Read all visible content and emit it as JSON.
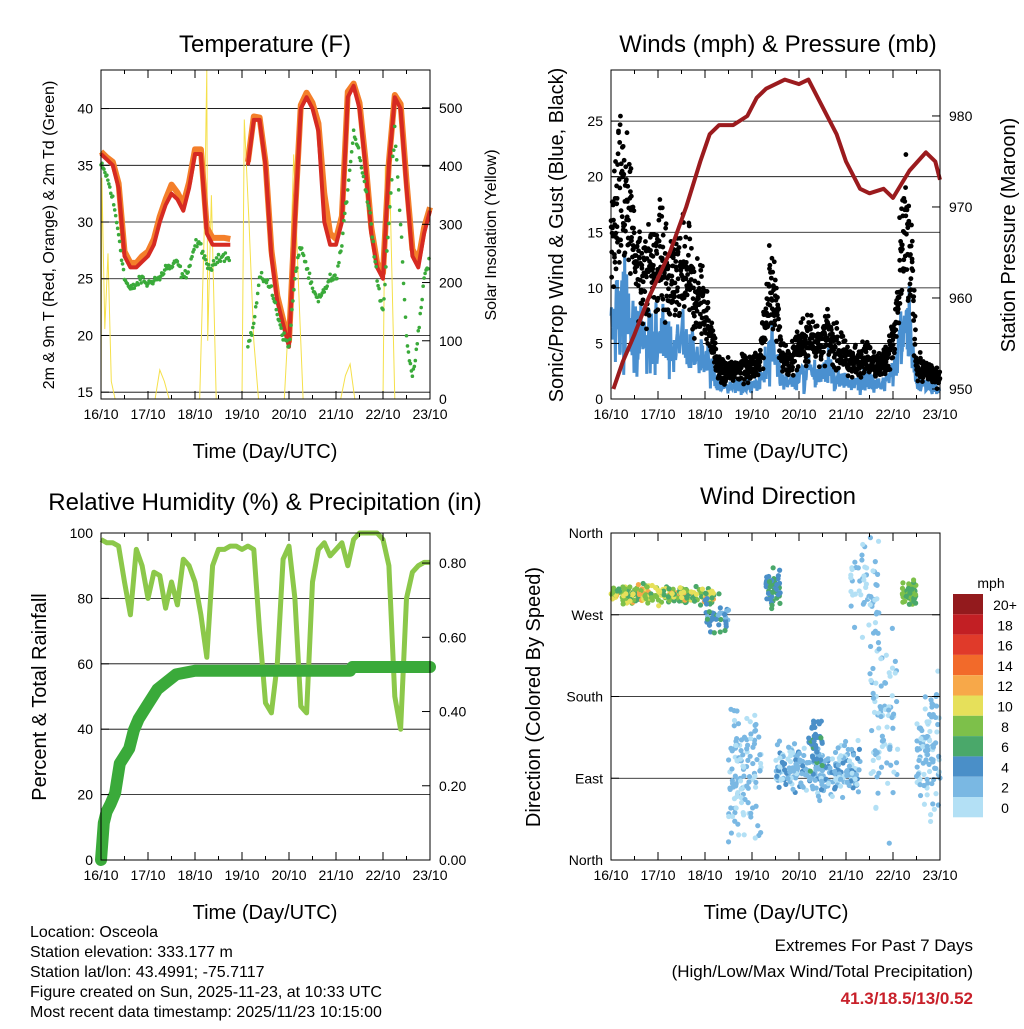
{
  "colors": {
    "temp_2m": "#d62a22",
    "temp_9m": "#f47f2a",
    "dewpoint": "#3aaa3a",
    "solar": "#f5e04a",
    "gust": "#000000",
    "wind": "#4a90d0",
    "pressure": "#9b1b1e",
    "rh": "#8cc84a",
    "precip": "#3aaa3a",
    "extremes": "#c8202a"
  },
  "chart_data": [
    {
      "type": "line",
      "title": "Temperature (F)",
      "xlabel": "Time (Day/UTC)",
      "ylabel": "2m & 9m T (Red, Orange) & 2m Td (Green)",
      "ylabel_right": "Solar Insolation (Yellow)",
      "x_ticks": [
        "16/10",
        "17/10",
        "18/10",
        "19/10",
        "20/10",
        "21/10",
        "22/10",
        "23/10"
      ],
      "y_ticks": [
        "15",
        "20",
        "25",
        "30",
        "35",
        "40"
      ],
      "y_tick_values": [
        15,
        20,
        25,
        30,
        35,
        40
      ],
      "y_right_ticks": [
        "0",
        "100",
        "200",
        "300",
        "400",
        "500"
      ],
      "y_right_tick_values": [
        0,
        100,
        200,
        300,
        400,
        500
      ],
      "ylim": [
        14.4,
        43.4
      ],
      "ylim_right": [
        0,
        565
      ],
      "x_step_days": 0.125,
      "series": [
        {
          "name": "2m T",
          "values": [
            36,
            35.5,
            35,
            33,
            27,
            26,
            26,
            26.5,
            27,
            28,
            30,
            31.5,
            32.5,
            32,
            31,
            33,
            36,
            36,
            29,
            28,
            28,
            28,
            28,
            null,
            null,
            35,
            39,
            39,
            35,
            27,
            23,
            21,
            19,
            30,
            40,
            41,
            40,
            38,
            30,
            28,
            28,
            30,
            41,
            42,
            40,
            35,
            29,
            26,
            25,
            35,
            41,
            40,
            33,
            27,
            26,
            29,
            31
          ]
        },
        {
          "name": "9m T",
          "values": [
            36.2,
            35.7,
            35.3,
            33.4,
            27.4,
            26.4,
            26.4,
            27,
            27.4,
            28.5,
            30.5,
            32,
            33.3,
            32.6,
            31.6,
            33.5,
            36.4,
            36.4,
            29.5,
            28.6,
            28.6,
            28.6,
            28.5,
            null,
            null,
            35.3,
            39.3,
            39.2,
            35.3,
            27.5,
            23.5,
            21.4,
            19.5,
            30.5,
            40.3,
            41.4,
            40.5,
            38.7,
            32.5,
            29,
            28.5,
            30.5,
            41.5,
            42.2,
            40.5,
            35.5,
            29.5,
            26.4,
            25.5,
            35.3,
            41.2,
            40.4,
            33.6,
            27.6,
            26.6,
            29.5,
            31.3
          ]
        },
        {
          "name": "2m Td",
          "values": [
            35,
            34,
            32,
            29,
            25,
            24,
            24.5,
            25,
            24.5,
            25,
            25,
            26,
            26,
            26.5,
            25,
            26,
            28,
            28,
            26,
            26,
            27,
            27,
            27,
            null,
            null,
            19,
            21,
            25,
            25,
            24,
            22,
            20,
            19,
            25,
            28,
            26,
            24,
            23,
            24,
            25,
            25,
            28,
            33,
            38,
            36,
            33,
            30,
            25,
            22,
            30,
            38,
            30,
            20,
            16,
            20,
            25,
            27
          ]
        },
        {
          "name": "Solar Insolation",
          "axis": "right",
          "points": [
            [
              0,
              0
            ],
            [
              0.02,
              380
            ],
            [
              0.08,
              120
            ],
            [
              0.15,
              250
            ],
            [
              0.22,
              30
            ],
            [
              0.3,
              0
            ],
            [
              1.15,
              0
            ],
            [
              1.25,
              50
            ],
            [
              1.35,
              30
            ],
            [
              1.45,
              0
            ],
            [
              2.1,
              0
            ],
            [
              2.2,
              300
            ],
            [
              2.25,
              565
            ],
            [
              2.27,
              100
            ],
            [
              2.35,
              350
            ],
            [
              2.45,
              0
            ],
            [
              3.0,
              0
            ],
            [
              3.05,
              480
            ],
            [
              3.15,
              300
            ],
            [
              3.25,
              100
            ],
            [
              3.35,
              0
            ],
            [
              3.9,
              0
            ],
            [
              4.0,
              150
            ],
            [
              4.1,
              420
            ],
            [
              4.2,
              200
            ],
            [
              4.3,
              0
            ],
            [
              5.1,
              0
            ],
            [
              5.2,
              40
            ],
            [
              5.3,
              60
            ],
            [
              5.4,
              0
            ],
            [
              6.0,
              0
            ],
            [
              6.05,
              400
            ],
            [
              6.15,
              350
            ],
            [
              6.25,
              0
            ],
            [
              7,
              0
            ]
          ]
        }
      ]
    },
    {
      "type": "scatter",
      "title": "Winds (mph) & Pressure (mb)",
      "xlabel": "Time (Day/UTC)",
      "ylabel": "Sonic/Prop Wind & Gust (Blue, Black)",
      "ylabel_right": "Station Pressure (Maroon)",
      "x_ticks": [
        "16/10",
        "17/10",
        "18/10",
        "19/10",
        "20/10",
        "21/10",
        "22/10",
        "23/10"
      ],
      "y_ticks": [
        "0",
        "5",
        "10",
        "15",
        "20",
        "25"
      ],
      "y_tick_values": [
        0,
        5,
        10,
        15,
        20,
        25
      ],
      "y_right_ticks": [
        "950",
        "960",
        "970",
        "980"
      ],
      "y_right_tick_values": [
        950,
        960,
        970,
        980
      ],
      "ylim": [
        0,
        29.6
      ],
      "ylim_right": [
        948.9,
        985.05
      ],
      "x_step_days": 0.125,
      "series": [
        {
          "name": "Gust (typical)",
          "values": [
            14,
            17,
            20,
            16,
            13,
            12,
            11,
            12,
            13,
            12,
            10,
            10,
            11,
            11,
            9,
            9,
            8,
            6,
            3,
            2.5,
            2.5,
            2.5,
            3,
            2.5,
            3,
            3,
            6,
            10,
            9,
            4,
            3,
            4,
            5,
            5,
            6,
            5,
            5,
            6,
            5,
            4,
            4,
            3,
            3.5,
            4,
            4,
            3,
            3,
            4,
            5,
            10,
            15,
            12,
            3,
            2.5,
            2.5,
            2,
            2
          ]
        },
        {
          "name": "Station Pressure",
          "axis": "right",
          "points": [
            [
              0.05,
              950
            ],
            [
              0.25,
              953
            ],
            [
              0.5,
              956
            ],
            [
              0.8,
              960
            ],
            [
              1.25,
              965
            ],
            [
              1.6,
              970
            ],
            [
              1.9,
              975
            ],
            [
              2.1,
              978
            ],
            [
              2.3,
              979
            ],
            [
              2.6,
              979
            ],
            [
              2.9,
              980
            ],
            [
              3.1,
              982
            ],
            [
              3.3,
              983
            ],
            [
              3.7,
              984
            ],
            [
              4.0,
              983.5
            ],
            [
              4.2,
              984
            ],
            [
              4.4,
              982
            ],
            [
              4.8,
              978
            ],
            [
              5.0,
              975
            ],
            [
              5.3,
              972
            ],
            [
              5.5,
              971.5
            ],
            [
              5.8,
              972
            ],
            [
              6.0,
              971
            ],
            [
              6.35,
              974
            ],
            [
              6.7,
              976
            ],
            [
              6.9,
              975
            ],
            [
              7.0,
              973
            ]
          ]
        }
      ]
    },
    {
      "type": "line",
      "title": "Relative Humidity (%) & Precipitation (in)",
      "xlabel": "Time (Day/UTC)",
      "ylabel": "Percent & Total Rainfall",
      "x_ticks": [
        "16/10",
        "17/10",
        "18/10",
        "19/10",
        "20/10",
        "21/10",
        "22/10",
        "23/10"
      ],
      "y_ticks": [
        "0",
        "20",
        "40",
        "60",
        "80",
        "100"
      ],
      "y_tick_values": [
        0,
        20,
        40,
        60,
        80,
        100
      ],
      "y_right_ticks": [
        "0.00",
        "0.20",
        "0.40",
        "0.60",
        "0.80"
      ],
      "y_right_tick_values": [
        0,
        0.2,
        0.4,
        0.6,
        0.8
      ],
      "ylim": [
        0,
        100
      ],
      "ylim_right": [
        0,
        0.881
      ],
      "x_step_days": 0.125,
      "series": [
        {
          "name": "Relative Humidity",
          "values": [
            98,
            97,
            97,
            96,
            85,
            75,
            95,
            90,
            80,
            88,
            87,
            77,
            85,
            78,
            92,
            90,
            85,
            75,
            62,
            90,
            95,
            95,
            96,
            96,
            95,
            96,
            95,
            70,
            48,
            45,
            60,
            92,
            96,
            80,
            47,
            45,
            85,
            95,
            97,
            93,
            95,
            97,
            90,
            98,
            100,
            100,
            100,
            100,
            98,
            90,
            50,
            40,
            80,
            88,
            90,
            91,
            91
          ]
        },
        {
          "name": "Total Precipitation",
          "axis": "right",
          "points": [
            [
              0,
              0
            ],
            [
              0.03,
              0.05
            ],
            [
              0.06,
              0.1
            ],
            [
              0.12,
              0.13
            ],
            [
              0.2,
              0.15
            ],
            [
              0.3,
              0.18
            ],
            [
              0.4,
              0.26
            ],
            [
              0.5,
              0.28
            ],
            [
              0.6,
              0.3
            ],
            [
              0.7,
              0.35
            ],
            [
              0.8,
              0.38
            ],
            [
              1.0,
              0.42
            ],
            [
              1.2,
              0.46
            ],
            [
              1.4,
              0.48
            ],
            [
              1.6,
              0.5
            ],
            [
              2.0,
              0.51
            ],
            [
              5.3,
              0.51
            ],
            [
              5.35,
              0.52
            ],
            [
              7,
              0.52
            ]
          ]
        }
      ]
    },
    {
      "type": "scatter",
      "title": "Wind Direction",
      "xlabel": "Time (Day/UTC)",
      "ylabel": "Direction (Colored By Speed)",
      "x_ticks": [
        "16/10",
        "17/10",
        "18/10",
        "19/10",
        "20/10",
        "21/10",
        "22/10",
        "23/10"
      ],
      "y_ticks": [
        "North",
        "East",
        "South",
        "West",
        "North"
      ],
      "y_tick_values": [
        0,
        90,
        180,
        270,
        360
      ],
      "ylim": [
        0,
        360
      ],
      "legend": {
        "title": "mph",
        "labels": [
          "20+",
          "18",
          "16",
          "14",
          "12",
          "10",
          "8",
          "6",
          "4",
          "2",
          "0"
        ],
        "colors": [
          "#931a1d",
          "#c21f24",
          "#e03a2a",
          "#f26a2a",
          "#f7a849",
          "#e6e05a",
          "#7dc04a",
          "#4aa86a",
          "#4a8fc8",
          "#7ab8e3",
          "#b3e0f5"
        ],
        "placement": "right"
      },
      "clusters": [
        {
          "t": [
            0.0,
            2.2
          ],
          "dir": 292,
          "spread": 7,
          "speed": [
            5,
            12
          ],
          "count": 220
        },
        {
          "t": [
            2.0,
            2.5
          ],
          "dir": 270,
          "spread": 14,
          "speed": [
            2,
            6
          ],
          "count": 40
        },
        {
          "t": [
            2.5,
            3.2
          ],
          "dir": 95,
          "spread": 55,
          "speed": [
            0,
            3
          ],
          "count": 120
        },
        {
          "t": [
            3.3,
            3.6
          ],
          "dir": 298,
          "spread": 14,
          "speed": [
            3,
            7
          ],
          "count": 50
        },
        {
          "t": [
            3.5,
            5.3
          ],
          "dir": 100,
          "spread": 20,
          "speed": [
            0,
            4
          ],
          "count": 260
        },
        {
          "t": [
            4.2,
            4.5
          ],
          "dir": 130,
          "spread": 25,
          "speed": [
            3,
            6
          ],
          "count": 40
        },
        {
          "t": [
            5.1,
            5.7
          ],
          "dir": 300,
          "spread": 40,
          "speed": [
            0,
            3
          ],
          "count": 60
        },
        {
          "t": [
            5.5,
            6.1
          ],
          "dir": 150,
          "spread": 70,
          "speed": [
            0,
            2
          ],
          "count": 80
        },
        {
          "t": [
            6.2,
            6.5
          ],
          "dir": 293,
          "spread": 9,
          "speed": [
            5,
            9
          ],
          "count": 60
        },
        {
          "t": [
            6.5,
            7.0
          ],
          "dir": 120,
          "spread": 50,
          "speed": [
            0,
            3
          ],
          "count": 100
        }
      ]
    }
  ],
  "footer": {
    "location": "Location: Osceola",
    "elevation": "Station elevation: 333.177 m",
    "latlon": "Station lat/lon: 43.4991; -75.7117",
    "created": "Figure created on Sun, 2025-11-23, at 10:33 UTC",
    "recent": "Most recent data timestamp: 2025/11/23 10:15:00"
  },
  "extremes": {
    "title": "Extremes For Past 7 Days",
    "subtitle": "(High/Low/Max Wind/Total Precipitation)",
    "values": "41.3/18.5/13/0.52"
  }
}
